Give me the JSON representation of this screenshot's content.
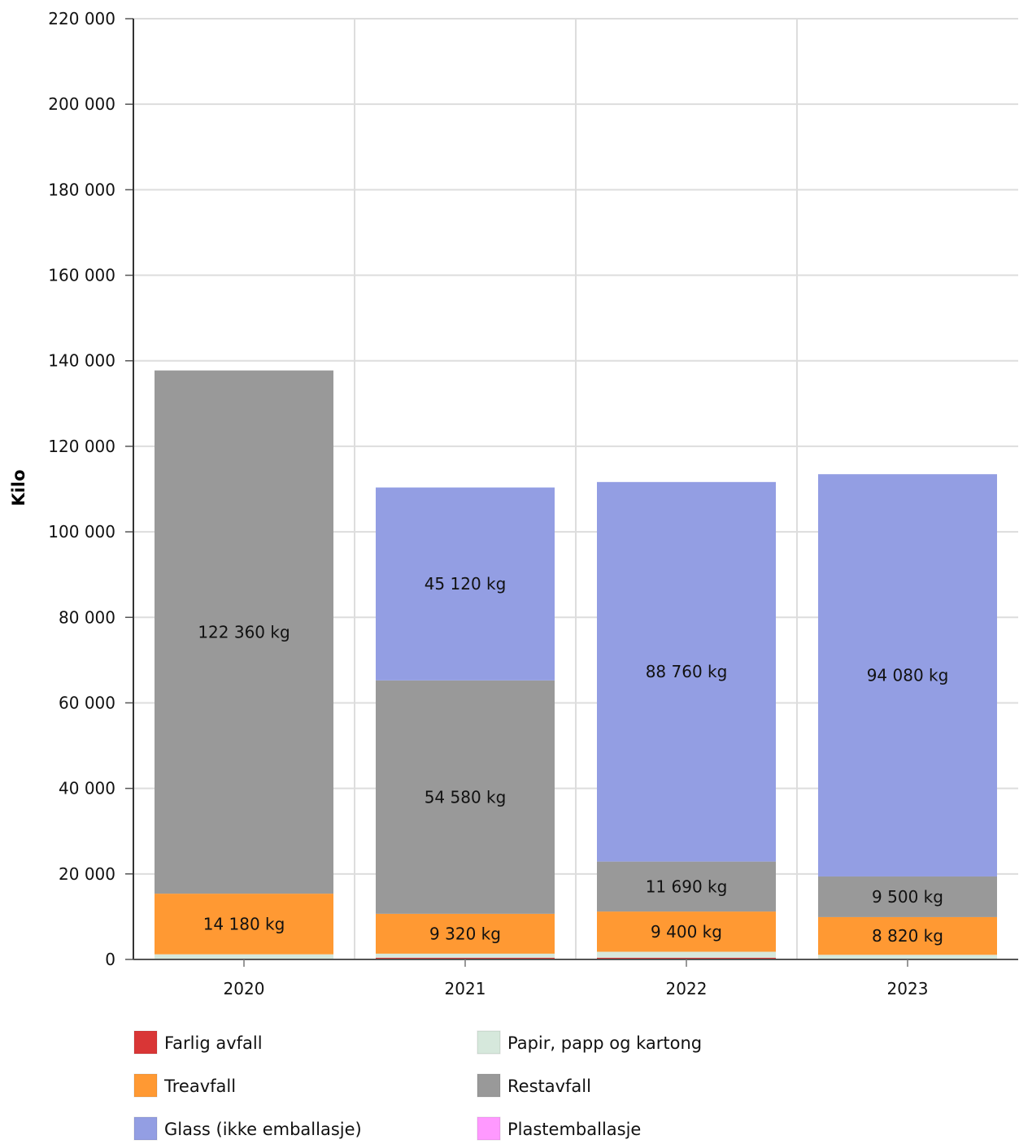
{
  "chart_data": {
    "type": "bar",
    "stacked": true,
    "ylabel": "Kilo",
    "xlabel": "",
    "ylim": [
      0,
      220000
    ],
    "yticks": [
      0,
      20000,
      40000,
      60000,
      80000,
      100000,
      120000,
      140000,
      160000,
      180000,
      200000,
      220000
    ],
    "ytick_labels": [
      "0",
      "20 000",
      "40 000",
      "60 000",
      "80 000",
      "100 000",
      "120 000",
      "140 000",
      "160 000",
      "180 000",
      "200 000",
      "220 000"
    ],
    "categories": [
      "2020",
      "2021",
      "2022",
      "2023"
    ],
    "grid": true,
    "legend_position": "bottom",
    "series": [
      {
        "name": "Farlig avfall",
        "color": "#d93636",
        "values": [
          0,
          400,
          400,
          0
        ],
        "labels": [
          "",
          "",
          "",
          ""
        ]
      },
      {
        "name": "Papir, papp og kartong",
        "color": "#d6e8dc",
        "values": [
          1200,
          950,
          1400,
          1080
        ],
        "labels": [
          "",
          "",
          "",
          ""
        ]
      },
      {
        "name": "Treavfall",
        "color": "#ff9933",
        "values": [
          14180,
          9320,
          9400,
          8820
        ],
        "labels": [
          "14 180 kg",
          "9 320 kg",
          "9 400 kg",
          "8 820 kg"
        ]
      },
      {
        "name": "Restavfall",
        "color": "#999999",
        "values": [
          122360,
          54580,
          11690,
          9500
        ],
        "labels": [
          "122 360 kg",
          "54 580 kg",
          "11 690 kg",
          "9 500 kg"
        ]
      },
      {
        "name": "Glass (ikke emballasje)",
        "color": "#939ee3",
        "values": [
          0,
          45120,
          88760,
          94080
        ],
        "labels": [
          "",
          "45 120 kg",
          "88 760 kg",
          "94 080 kg"
        ]
      },
      {
        "name": "Plastemballasje",
        "color": "#ff99ff",
        "values": [
          0,
          0,
          0,
          0
        ],
        "labels": [
          "",
          "",
          "",
          ""
        ]
      }
    ],
    "legend_order": [
      "Farlig avfall",
      "Papir, papp og kartong",
      "Treavfall",
      "Restavfall",
      "Glass (ikke emballasje)",
      "Plastemballasje"
    ]
  }
}
